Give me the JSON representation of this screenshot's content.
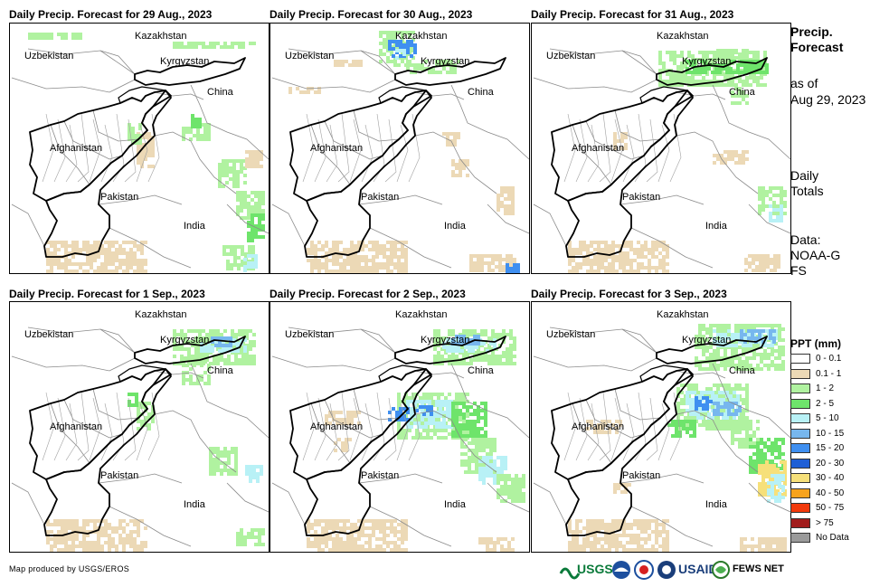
{
  "panels": [
    {
      "title": "Daily Precip. Forecast for 29 Aug., 2023"
    },
    {
      "title": "Daily Precip. Forecast for 30 Aug., 2023"
    },
    {
      "title": "Daily Precip. Forecast for 31 Aug., 2023"
    },
    {
      "title": "Daily Precip. Forecast for 1 Sep., 2023"
    },
    {
      "title": "Daily Precip. Forecast for 2 Sep., 2023"
    },
    {
      "title": "Daily Precip. Forecast for 3 Sep., 2023"
    }
  ],
  "map_labels": {
    "kazakhstan": "Kazakhstan",
    "uzbekistan": "Uzbekistan",
    "kyrgyzstan": "Kyrgyzstan",
    "china": "China",
    "afghanistan": "Afghanistan",
    "pakistan": "Pakistan",
    "india": "India"
  },
  "side": {
    "title": "Precip. Forecast",
    "asof_label": "as of",
    "asof_date": "Aug 29, 2023",
    "totals": "Daily Totals",
    "data_label": "Data:",
    "data_source": "NOAA-GFS"
  },
  "legend": {
    "title": "PPT (mm)",
    "items": [
      {
        "label": "0 - 0.1",
        "color": "#ffffff"
      },
      {
        "label": "0.1 - 1",
        "color": "#ecd9b6"
      },
      {
        "label": "1 - 2",
        "color": "#b0f2a0"
      },
      {
        "label": "2 - 5",
        "color": "#6ee46b"
      },
      {
        "label": "5 - 10",
        "color": "#b8f1f6"
      },
      {
        "label": "10 - 15",
        "color": "#77b7ee"
      },
      {
        "label": "15 - 20",
        "color": "#3f8ff0"
      },
      {
        "label": "20 - 30",
        "color": "#1f5fd6"
      },
      {
        "label": "30 - 40",
        "color": "#f6e07a"
      },
      {
        "label": "40 - 50",
        "color": "#f7a31d"
      },
      {
        "label": "50 - 75",
        "color": "#f23a0c"
      },
      {
        "label": "> 75",
        "color": "#a11c1c"
      },
      {
        "label": "No Data",
        "color": "#9a9a9a"
      }
    ]
  },
  "footer": {
    "credit": "Map produced by USGS/EROS",
    "usgs": "USGS",
    "usaid": "USAID",
    "fewsnet": "FEWS NET"
  }
}
